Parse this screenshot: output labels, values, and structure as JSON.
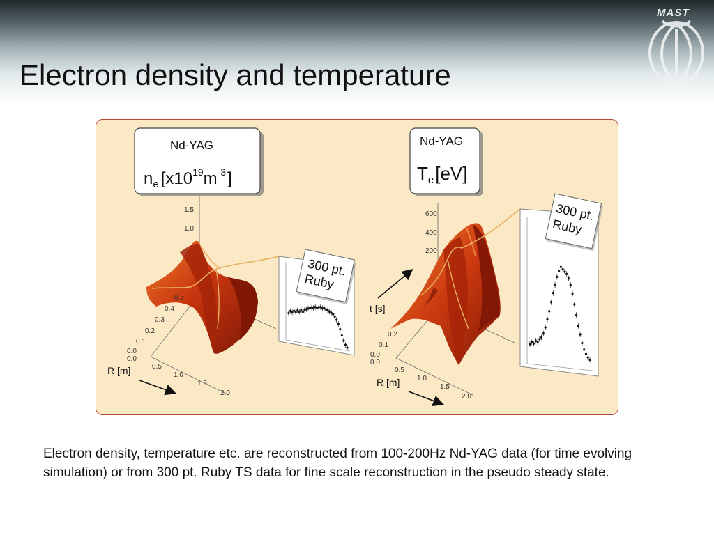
{
  "slide": {
    "title": "Electron density and temperature",
    "caption": "Electron density, temperature etc. are reconstructed from 100-200Hz Nd-YAG data (for time evolving simulation) or from 300 pt. Ruby TS data for fine scale reconstruction in the pseudo steady state.",
    "logo_text": "MAST"
  },
  "colors": {
    "panel_bg": "#fbe9c6",
    "panel_border": "#b24a3a",
    "surface_dark": "#8e1e08",
    "surface_mid": "#c8350f",
    "surface_light": "#ee7a28",
    "profile_line": "#f0c070"
  },
  "left_plot": {
    "label_box": {
      "source": "Nd-YAG",
      "quantity_symbol": "n",
      "quantity_subscript": "e",
      "unit_open": "[x10",
      "unit_exp1": "19",
      "unit_mid": "m",
      "unit_exp2": "-3",
      "unit_close": "]"
    },
    "z_ticks": [
      "1.5",
      "1.0"
    ],
    "t_ticks": [
      "0.5",
      "0.4",
      "0.3",
      "0.2",
      "0.1",
      "0.0"
    ],
    "r_ticks": [
      "0.0",
      "0.5",
      "1.0",
      "1.5",
      "2.0"
    ],
    "r_axis_label": "R [m]",
    "ruby_label": [
      "300 pt.",
      "Ruby"
    ]
  },
  "right_plot": {
    "label_box": {
      "source": "Nd-YAG",
      "quantity_symbol": "T",
      "quantity_subscript": "e",
      "unit": "[eV]"
    },
    "z_ticks": [
      "600",
      "400",
      "200"
    ],
    "t_ticks": [
      "0.2",
      "0.1",
      "0.0"
    ],
    "r_ticks": [
      "0.0",
      "0.5",
      "1.0",
      "1.5",
      "2.0"
    ],
    "r_axis_label": "R [m]",
    "t_axis_label": "t [s]",
    "ruby_label": [
      "300 pt.",
      "Ruby"
    ]
  },
  "ruby_profiles": {
    "density": [
      0.55,
      0.6,
      0.58,
      0.62,
      0.6,
      0.64,
      0.62,
      0.66,
      0.63,
      0.68,
      0.7,
      0.72,
      0.74,
      0.76,
      0.75,
      0.78,
      0.77,
      0.79,
      0.8,
      0.78,
      0.79,
      0.77,
      0.76,
      0.74,
      0.72,
      0.7,
      0.66,
      0.6,
      0.52,
      0.42,
      0.3,
      0.2,
      0.12,
      0.07
    ],
    "temperature": [
      0.12,
      0.14,
      0.13,
      0.16,
      0.15,
      0.18,
      0.2,
      0.24,
      0.3,
      0.38,
      0.46,
      0.55,
      0.64,
      0.72,
      0.8,
      0.86,
      0.9,
      0.88,
      0.86,
      0.84,
      0.8,
      0.74,
      0.66,
      0.56,
      0.46,
      0.36,
      0.28,
      0.2,
      0.14,
      0.1,
      0.07,
      0.05
    ]
  }
}
